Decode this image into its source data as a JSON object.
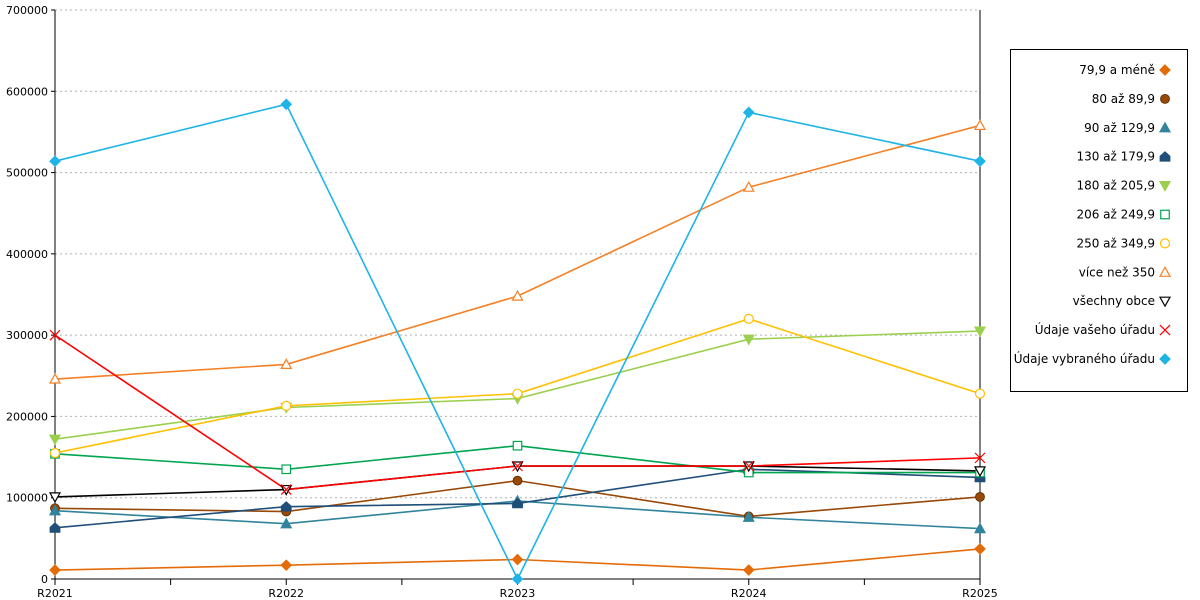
{
  "chart_data": {
    "type": "line",
    "categories": [
      "R2021",
      "R2022",
      "R2023",
      "R2024",
      "R2025"
    ],
    "ylim": [
      0,
      700000
    ],
    "yticks": [
      0,
      100000,
      200000,
      300000,
      400000,
      500000,
      600000,
      700000
    ],
    "ytick_labels": [
      "0",
      "100000",
      "200000",
      "300000",
      "400000",
      "500000",
      "600000",
      "700000"
    ],
    "grid": "horizontal dashed",
    "legend_position": "right",
    "series": [
      {
        "name": "79,9 a méně",
        "color": "#E36C09",
        "marker": "diamond-filled",
        "values": [
          11000,
          17000,
          24000,
          11000,
          37000
        ]
      },
      {
        "name": "80 až 89,9",
        "color": "#984807",
        "marker": "circle-filled",
        "values": [
          87000,
          83000,
          121000,
          77000,
          101000
        ]
      },
      {
        "name": "90 až 129,9",
        "color": "#31849B",
        "marker": "triangle-up-filled",
        "values": [
          84000,
          68000,
          96000,
          76000,
          62000
        ]
      },
      {
        "name": "130 až 179,9",
        "color": "#1F4E79",
        "marker": "home-filled",
        "values": [
          63000,
          89000,
          93000,
          135000,
          125000
        ]
      },
      {
        "name": "180 až 205,9",
        "color": "#9BD04E",
        "marker": "triangle-down-filled",
        "values": [
          172000,
          211000,
          222000,
          295000,
          305000
        ]
      },
      {
        "name": "206 až 249,9",
        "color": "#00A550",
        "marker": "square-open",
        "values": [
          154000,
          135000,
          164000,
          131000,
          131000
        ]
      },
      {
        "name": "250 až 349,9",
        "color": "#FFC000",
        "marker": "circle-open",
        "values": [
          155000,
          213000,
          228000,
          320000,
          228000
        ]
      },
      {
        "name": "více než 350",
        "color": "#F58025",
        "marker": "triangle-up-open",
        "values": [
          246000,
          264000,
          348000,
          482000,
          558000
        ]
      },
      {
        "name": "všechny obce",
        "color": "#000000",
        "marker": "triangle-down-open",
        "values": [
          101000,
          110000,
          139000,
          139000,
          133000
        ]
      },
      {
        "name": "Údaje vašeho úřadu",
        "color": "#FF0000",
        "marker": "x",
        "values": [
          300000,
          110000,
          139000,
          139000,
          149000
        ]
      },
      {
        "name": "Údaje vybraného úřadu",
        "color": "#1EB4E6",
        "marker": "diamond-filled",
        "values": [
          514000,
          584000,
          0,
          574000,
          514000
        ]
      }
    ]
  }
}
